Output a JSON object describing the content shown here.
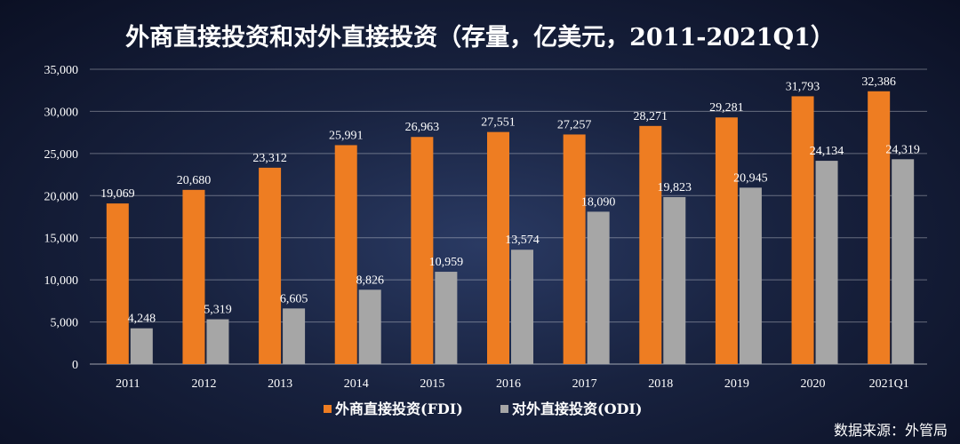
{
  "chart_data": {
    "type": "bar",
    "title": "外商直接投资和对外直接投资（存量，亿美元，2011-2021Q1）",
    "categories": [
      "2011",
      "2012",
      "2013",
      "2014",
      "2015",
      "2016",
      "2017",
      "2018",
      "2019",
      "2020",
      "2021Q1"
    ],
    "series": [
      {
        "name": "外商直接投资(FDI)",
        "color": "#ee7d22",
        "values": [
          19069,
          20680,
          23312,
          25991,
          26963,
          27551,
          27257,
          28271,
          29281,
          31793,
          32386
        ]
      },
      {
        "name": "对外直接投资(ODI)",
        "color": "#a6a6a6",
        "values": [
          4248,
          5319,
          6605,
          8826,
          10959,
          13574,
          18090,
          19823,
          20945,
          24134,
          24319
        ]
      }
    ],
    "value_labels": [
      [
        "19,069",
        "20,680",
        "23,312",
        "25,991",
        "26,963",
        "27,551",
        "27,257",
        "28,271",
        "29,281",
        "31,793",
        "32,386"
      ],
      [
        "4,248",
        "5,319",
        "6,605",
        "8,826",
        "10,959",
        "13,574",
        "18,090",
        "19,823",
        "20,945",
        "24,134",
        "24,319"
      ]
    ],
    "y_ticks": [
      "0",
      "5,000",
      "10,000",
      "15,000",
      "20,000",
      "25,000",
      "30,000",
      "35,000"
    ],
    "ylim": [
      0,
      35000
    ],
    "grid": true,
    "legend_position": "bottom"
  },
  "source_note": "数据来源：外管局"
}
